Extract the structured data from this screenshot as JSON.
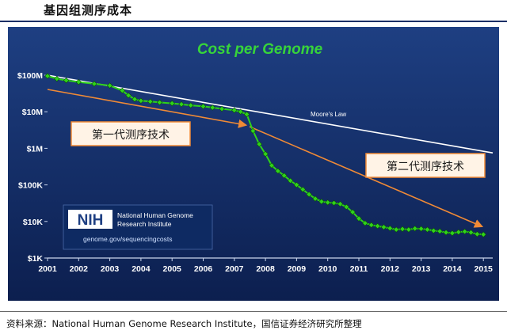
{
  "report_title": "基因组测序成本",
  "source_text": "资料来源：National Human Genome Research Institute，国信证券经济研究所整理",
  "colors": {
    "background_top": "#1e3f82",
    "background_bottom": "#0c1f4f",
    "series": "#2fd21a",
    "trend": "#f08a36",
    "moores_law": "#ffffff",
    "title": "#37d43a"
  },
  "nih_badge": {
    "logo": "NIH",
    "line1": "National Human Genome",
    "line2": "Research Institute",
    "url": "genome.gov/sequencingcosts"
  },
  "annotations": {
    "first_gen": "第一代测序技术",
    "second_gen": "第二代测序技术",
    "moores_law": "Moore's Law"
  },
  "chart_data": {
    "type": "line",
    "title": "Cost per Genome",
    "y_scale": "log",
    "ylim": [
      1000,
      100000000
    ],
    "xlim": [
      2001,
      2015.3
    ],
    "y_ticks": [
      {
        "value": 100000000,
        "label": "$100M"
      },
      {
        "value": 10000000,
        "label": "$10M"
      },
      {
        "value": 1000000,
        "label": "$1M"
      },
      {
        "value": 100000,
        "label": "$100K"
      },
      {
        "value": 10000,
        "label": "$10K"
      },
      {
        "value": 1000,
        "label": "$1K"
      }
    ],
    "x_ticks": [
      "2001",
      "2002",
      "2003",
      "2004",
      "2005",
      "2006",
      "2007",
      "2008",
      "2009",
      "2010",
      "2011",
      "2012",
      "2013",
      "2014",
      "2015"
    ],
    "series": [
      {
        "x": [
          2001.0,
          2001.3,
          2001.6,
          2002.0,
          2002.5,
          2003.0,
          2003.4,
          2003.6,
          2003.8,
          2004.0,
          2004.3,
          2004.6,
          2005.0,
          2005.3,
          2005.6,
          2006.0,
          2006.3,
          2006.6,
          2007.0,
          2007.2,
          2007.4,
          2007.6,
          2007.8,
          2008.0,
          2008.2,
          2008.4,
          2008.6,
          2008.8,
          2009.0,
          2009.2,
          2009.4,
          2009.6,
          2009.8,
          2010.0,
          2010.2,
          2010.4,
          2010.6,
          2010.8,
          2011.0,
          2011.2,
          2011.4,
          2011.6,
          2011.8,
          2012.0,
          2012.2,
          2012.4,
          2012.6,
          2012.8,
          2013.0,
          2013.2,
          2013.4,
          2013.6,
          2013.8,
          2014.0,
          2014.2,
          2014.4,
          2014.6,
          2014.8,
          2015.0
        ],
        "values": [
          95000000,
          80000000,
          72000000,
          65000000,
          58000000,
          52000000,
          38000000,
          28000000,
          22000000,
          20000000,
          19000000,
          18000000,
          17000000,
          16000000,
          15000000,
          14000000,
          13000000,
          12000000,
          11000000,
          10000000,
          8500000,
          3000000,
          1300000,
          700000,
          340000,
          240000,
          180000,
          130000,
          100000,
          75000,
          55000,
          42000,
          35000,
          33000,
          32000,
          30000,
          25000,
          18000,
          12000,
          9000,
          8000,
          7500,
          7000,
          6500,
          6000,
          6200,
          6000,
          6400,
          6300,
          6000,
          5600,
          5400,
          5000,
          4800,
          5100,
          5300,
          5000,
          4500,
          4400
        ]
      }
    ],
    "trend_lines": [
      {
        "name": "Moore's Law",
        "x": [
          2001.0,
          2015.3
        ],
        "values": [
          100000000,
          750000
        ]
      }
    ]
  }
}
